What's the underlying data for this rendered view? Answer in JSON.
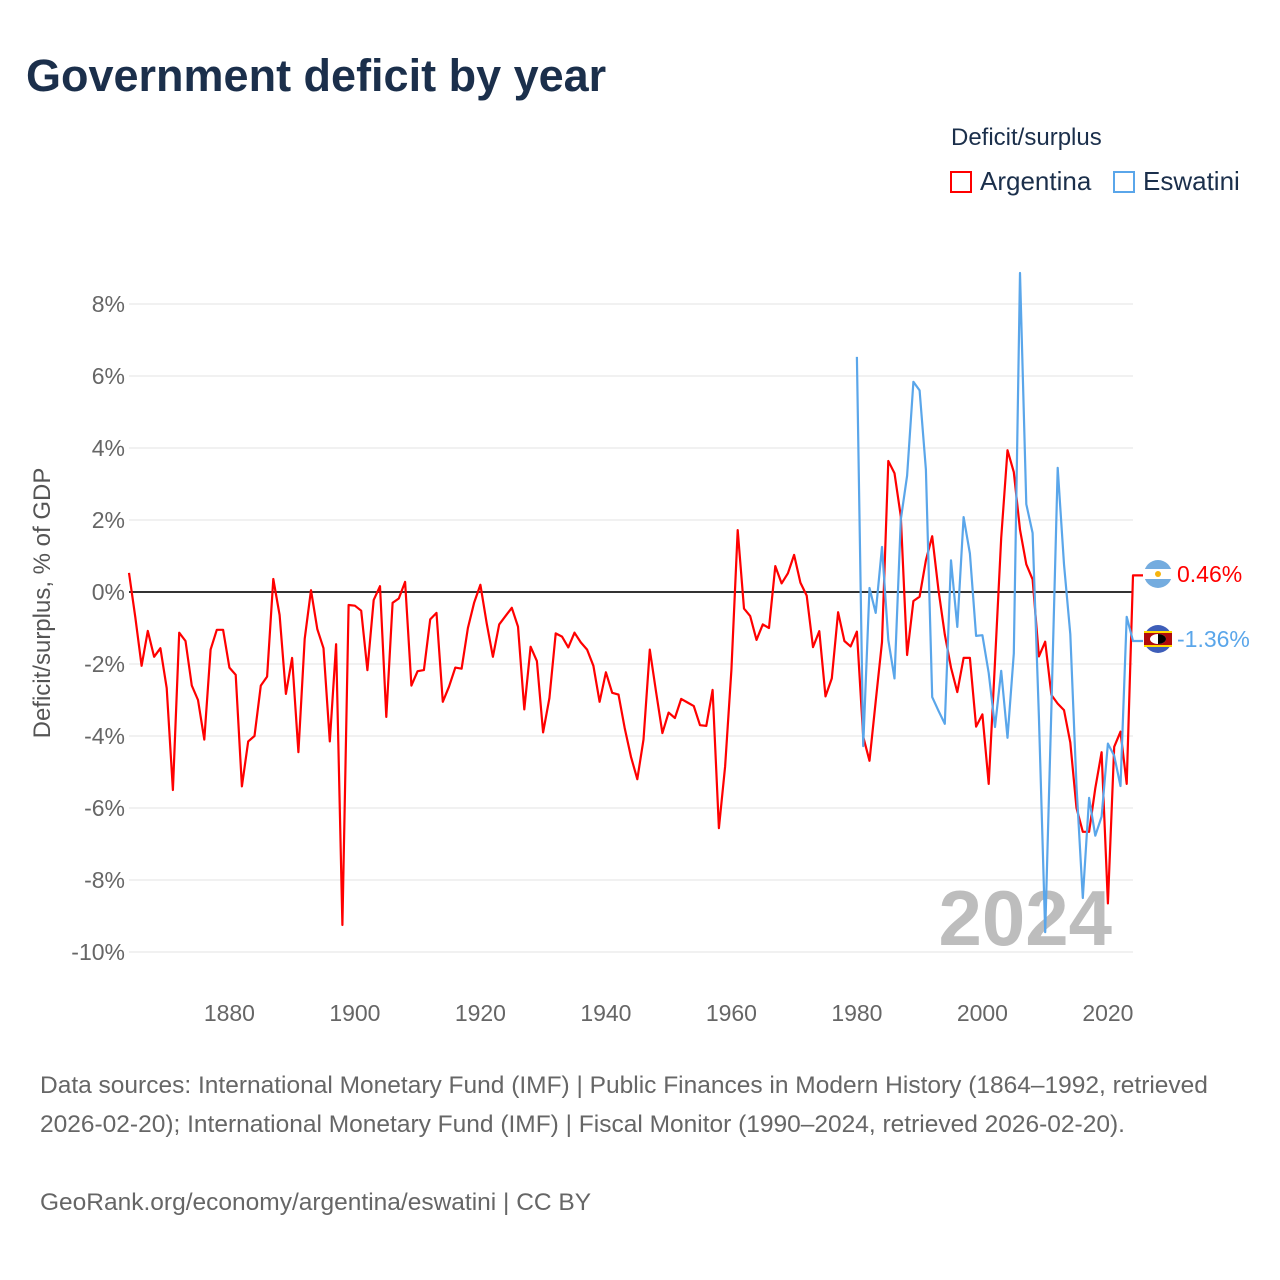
{
  "title": "Government deficit by year",
  "legend": {
    "title": "Deficit/surplus",
    "items": [
      {
        "label": "Argentina",
        "color": "#ff0000"
      },
      {
        "label": "Eswatini",
        "color": "#5aa6ea"
      }
    ]
  },
  "watermark_year": "2024",
  "end_labels": {
    "argentina": "0.46%",
    "eswatini": "-1.36%"
  },
  "footer": {
    "sources": "Data sources: International Monetary Fund (IMF) | Public Finances in Modern History (1864–1992, retrieved 2026-02-20); International Monetary Fund (IMF) | Fiscal Monitor (1990–2024, retrieved 2026-02-20).",
    "credit": "GeoRank.org/economy/argentina/eswatini | CC BY"
  },
  "chart_data": {
    "type": "line",
    "title": "Government deficit by year",
    "xlabel": "",
    "ylabel": "Deficit/surplus, % of GDP",
    "xlim": [
      1864,
      2024
    ],
    "ylim": [
      -10,
      9
    ],
    "grid": true,
    "legend_position": "top-right",
    "x_ticks": [
      1880,
      1900,
      1920,
      1940,
      1960,
      1980,
      2000,
      2020
    ],
    "x_tick_labels": [
      "1880",
      "1900",
      "1920",
      "1940",
      "1960",
      "1980",
      "2000",
      "2020"
    ],
    "y_ticks": [
      8,
      6,
      4,
      2,
      0,
      -2,
      -4,
      -6,
      -8,
      -10
    ],
    "y_tick_labels": [
      "8%",
      "6%",
      "4%",
      "2%",
      "0%",
      "-2%",
      "-4%",
      "-6%",
      "-8%",
      "-10%"
    ],
    "series": [
      {
        "name": "Argentina",
        "color": "#ff0000",
        "start_year": 1864,
        "values": [
          0.53,
          -0.7,
          -2.05,
          -1.08,
          -1.8,
          -1.56,
          -2.67,
          -5.5,
          -1.13,
          -1.36,
          -2.6,
          -3.0,
          -4.1,
          -1.6,
          -1.05,
          -1.05,
          -2.1,
          -2.3,
          -5.4,
          -4.15,
          -4.0,
          -2.6,
          -2.35,
          0.36,
          -0.64,
          -2.83,
          -1.83,
          -4.45,
          -1.3,
          0.05,
          -1.03,
          -1.56,
          -4.15,
          -1.45,
          -9.25,
          -0.36,
          -0.38,
          -0.52,
          -2.17,
          -0.22,
          0.16,
          -3.47,
          -0.3,
          -0.18,
          0.28,
          -2.6,
          -2.2,
          -2.17,
          -0.76,
          -0.58,
          -3.05,
          -2.63,
          -2.1,
          -2.13,
          -1.0,
          -0.3,
          0.2,
          -0.87,
          -1.8,
          -0.9,
          -0.67,
          -0.44,
          -0.96,
          -3.26,
          -1.52,
          -1.92,
          -3.9,
          -2.95,
          -1.15,
          -1.24,
          -1.54,
          -1.13,
          -1.4,
          -1.6,
          -2.05,
          -3.05,
          -2.23,
          -2.8,
          -2.85,
          -3.78,
          -4.58,
          -5.2,
          -4.1,
          -1.6,
          -2.78,
          -3.92,
          -3.35,
          -3.5,
          -2.97,
          -3.07,
          -3.17,
          -3.7,
          -3.72,
          -2.72,
          -6.56,
          -4.85,
          -2.17,
          1.72,
          -0.46,
          -0.67,
          -1.33,
          -0.9,
          -1.0,
          0.72,
          0.24,
          0.52,
          1.03,
          0.26,
          -0.1,
          -1.53,
          -1.09,
          -2.9,
          -2.4,
          -0.56,
          -1.36,
          -1.51,
          -1.1,
          -4.02,
          -4.69,
          -3.04,
          -1.39,
          3.64,
          3.3,
          2.1,
          -1.75,
          -0.25,
          -0.13,
          0.88,
          1.55,
          0.05,
          -1.18,
          -2.1,
          -2.78,
          -1.83,
          -1.83,
          -3.74,
          -3.4,
          -5.33,
          -1.94,
          1.5,
          3.94,
          3.33,
          1.73,
          0.77,
          0.35,
          -1.79,
          -1.38,
          -2.86,
          -3.1,
          -3.28,
          -4.18,
          -6.0,
          -6.66,
          -6.66,
          -5.45,
          -4.45,
          -8.65,
          -4.3,
          -3.88,
          -5.33,
          0.46
        ]
      },
      {
        "name": "Eswatini",
        "color": "#5aa6ea",
        "start_year": 1980,
        "values": [
          6.53,
          -4.28,
          0.11,
          -0.58,
          1.25,
          -1.33,
          -2.4,
          2.01,
          3.23,
          5.84,
          5.6,
          3.4,
          -2.92,
          -3.3,
          -3.66,
          0.88,
          -0.97,
          2.08,
          1.07,
          -1.22,
          -1.2,
          -2.25,
          -3.75,
          -2.19,
          -4.05,
          -1.71,
          8.86,
          2.44,
          1.64,
          -3.46,
          -9.45,
          -3.22,
          3.45,
          0.77,
          -1.17,
          -5.39,
          -8.5,
          -5.72,
          -6.77,
          -6.24,
          -4.21,
          -4.55,
          -5.39,
          -0.69,
          -1.36
        ]
      }
    ]
  }
}
